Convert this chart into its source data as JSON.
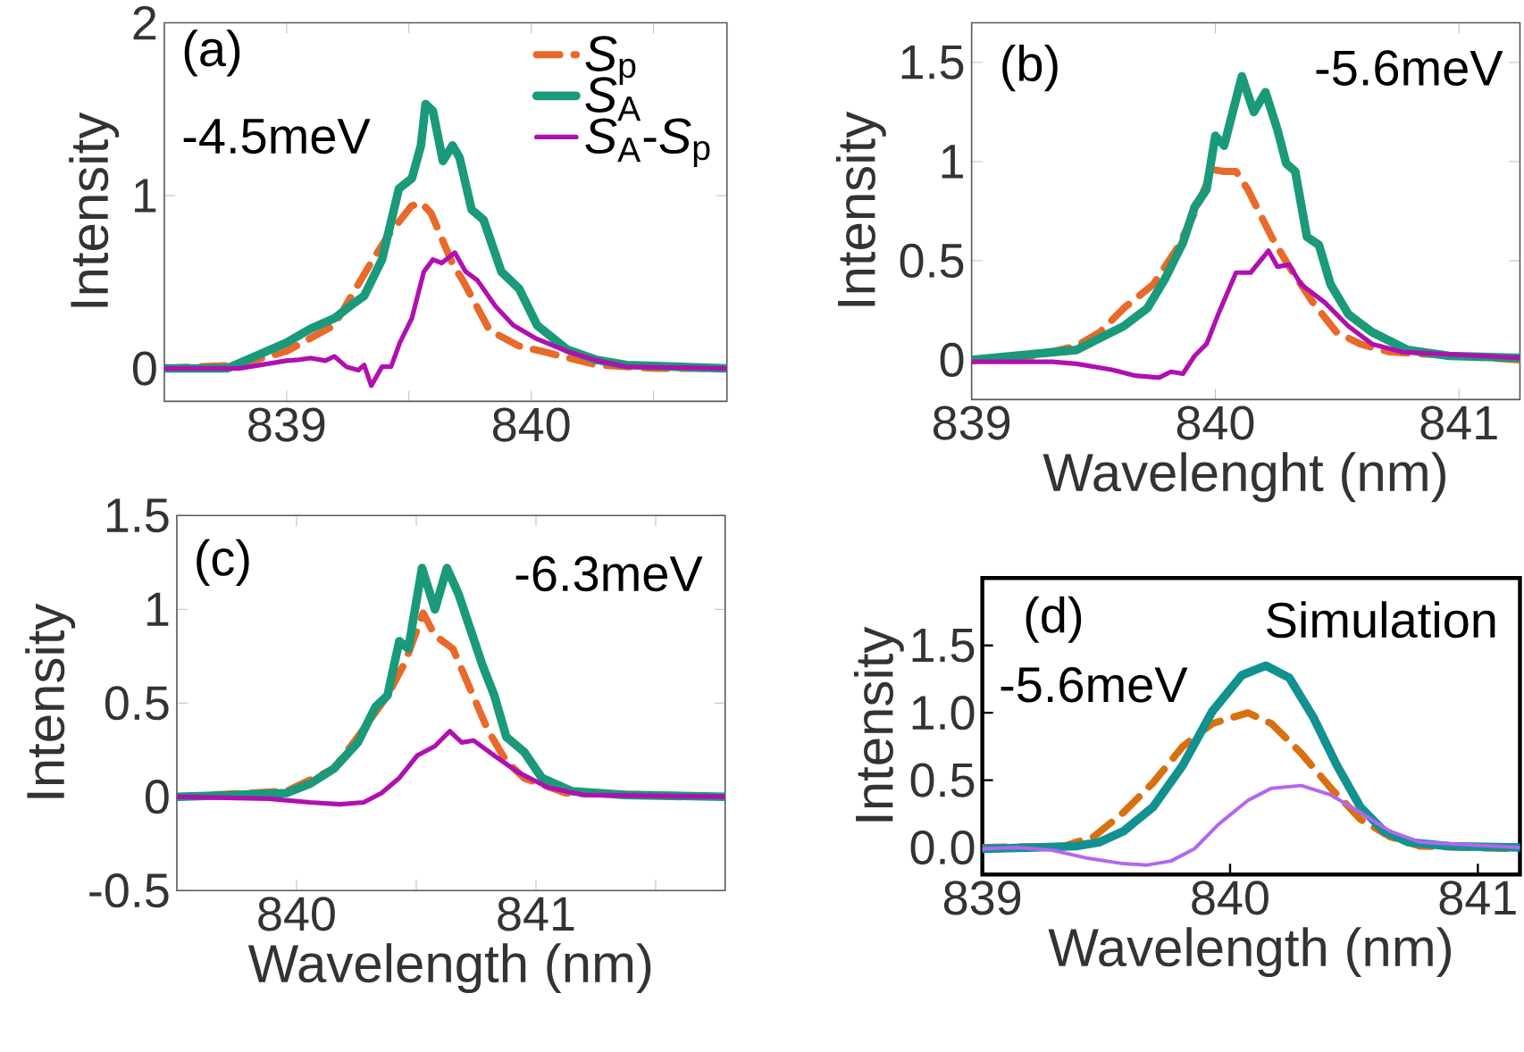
{
  "chart_data": [
    {
      "type": "line",
      "ylabel": "Intensity",
      "xlim": [
        838.5,
        840.8
      ],
      "ylim": [
        -0.19,
        2
      ],
      "xticks": [
        839,
        {
          "value": 839.5,
          "label": null
        },
        840,
        {
          "value": 840.5,
          "label": null
        }
      ],
      "yticks": [
        0,
        1,
        2
      ],
      "legend": "top right",
      "annotations": [
        "(a)",
        "-4.5meV"
      ],
      "series": [
        {
          "name": "*S*$_{p}$",
          "color": "#e8692a",
          "line_style": "dashed",
          "x": [
            838.5,
            838.8,
            839.0,
            839.195,
            839.34,
            839.415,
            839.51,
            839.55,
            839.59,
            839.68,
            839.72,
            839.83,
            839.95,
            840.07,
            840.27,
            840.51,
            840.8
          ],
          "values": [
            0,
            0.02,
            0.1,
            0.25,
            0.6,
            0.77,
            0.94,
            0.96,
            0.9,
            0.6,
            0.51,
            0.22,
            0.13,
            0.09,
            0.02,
            0,
            0
          ]
        },
        {
          "name": "*S*$_{A}$",
          "color": "#1a9a7a",
          "line_style": "solid",
          "x": [
            838.5,
            838.756,
            839.0,
            839.098,
            839.195,
            839.268,
            839.317,
            839.39,
            839.459,
            839.512,
            839.549,
            839.568,
            839.598,
            839.639,
            839.678,
            839.707,
            839.756,
            839.805,
            839.878,
            839.951,
            840.024,
            840.146,
            840.268,
            840.39,
            840.8
          ],
          "values": [
            0,
            0.0,
            0.15,
            0.23,
            0.29,
            0.37,
            0.42,
            0.63,
            1.04,
            1.1,
            1.29,
            1.53,
            1.49,
            1.2,
            1.29,
            1.22,
            0.92,
            0.86,
            0.56,
            0.46,
            0.25,
            0.11,
            0.05,
            0.02,
            0
          ]
        },
        {
          "name": "*S*$_{A}$-*S*$_{p}$",
          "color": "#b010b0",
          "line_style": "solid",
          "x": [
            838.5,
            838.805,
            839.0,
            839.049,
            839.098,
            839.159,
            839.195,
            839.244,
            839.293,
            839.317,
            839.346,
            839.39,
            839.427,
            839.463,
            839.512,
            839.561,
            839.598,
            839.634,
            839.688,
            839.732,
            839.78,
            839.854,
            839.927,
            840.024,
            840.146,
            840.268,
            840.39,
            840.8
          ],
          "values": [
            0,
            0,
            0.045,
            0.05,
            0.06,
            0.045,
            0.07,
            0.01,
            -0.01,
            0.02,
            -0.1,
            0.01,
            0.01,
            0.15,
            0.29,
            0.56,
            0.63,
            0.61,
            0.67,
            0.56,
            0.51,
            0.36,
            0.25,
            0.17,
            0.1,
            0.045,
            0.01,
            0
          ]
        }
      ]
    },
    {
      "type": "line",
      "xlabel": "Wavelenght (nm)",
      "ylabel": "Intensity",
      "xlim": [
        839,
        841.25
      ],
      "ylim": [
        -0.2,
        1.7
      ],
      "xticks": [
        839,
        840,
        841
      ],
      "yticks": [
        0,
        0.5,
        1,
        1.5
      ],
      "annotations": [
        "(b)",
        "-5.6meV"
      ],
      "series": [
        {
          "color": "#e8692a",
          "line_style": "dashed",
          "x": [
            839,
            839.26,
            839.43,
            839.527,
            839.624,
            839.745,
            839.842,
            839.915,
            839.988,
            840.036,
            840.085,
            840.133,
            840.182,
            840.231,
            840.303,
            840.4,
            840.497,
            840.594,
            840.716,
            841.25
          ],
          "values": [
            0,
            0.02,
            0.07,
            0.14,
            0.26,
            0.38,
            0.56,
            0.74,
            0.96,
            0.95,
            0.95,
            0.86,
            0.74,
            0.62,
            0.47,
            0.29,
            0.14,
            0.08,
            0.04,
            0
          ]
        },
        {
          "color": "#1a9a7a",
          "line_style": "solid",
          "x": [
            839,
            839.26,
            839.43,
            839.527,
            839.624,
            839.721,
            839.794,
            839.867,
            839.915,
            839.964,
            840.0,
            840.036,
            840.109,
            840.158,
            840.206,
            840.255,
            840.291,
            840.328,
            840.376,
            840.425,
            840.473,
            840.546,
            840.643,
            840.789,
            840.959,
            841.25
          ],
          "values": [
            0,
            0.03,
            0.05,
            0.11,
            0.17,
            0.26,
            0.41,
            0.59,
            0.77,
            0.86,
            1.13,
            1.08,
            1.43,
            1.25,
            1.35,
            1.16,
            0.99,
            0.95,
            0.62,
            0.58,
            0.38,
            0.23,
            0.14,
            0.05,
            0.02,
            0.01
          ]
        },
        {
          "color": "#b010b0",
          "line_style": "solid",
          "x": [
            839,
            839.332,
            839.43,
            839.575,
            839.672,
            839.769,
            839.818,
            839.867,
            839.915,
            839.964,
            840.012,
            840.085,
            840.145,
            840.218,
            840.255,
            840.303,
            840.352,
            840.449,
            840.546,
            840.643,
            840.765,
            841.25
          ],
          "values": [
            -0.01,
            -0.01,
            -0.02,
            -0.05,
            -0.08,
            -0.09,
            -0.06,
            -0.07,
            0.02,
            0.08,
            0.23,
            0.44,
            0.44,
            0.55,
            0.47,
            0.48,
            0.38,
            0.29,
            0.17,
            0.08,
            0.04,
            0.01
          ]
        }
      ]
    },
    {
      "type": "line",
      "xlabel": "Wavelength (nm)",
      "ylabel": "Intensity",
      "xlim": [
        839.5,
        841.79
      ],
      "ylim": [
        -0.5,
        1.5
      ],
      "xticks": [
        840,
        {
          "value": 840.5,
          "label": null
        },
        841,
        {
          "value": 841.5,
          "label": null
        }
      ],
      "yticks": [
        -0.5,
        0,
        0.5,
        1,
        1.5
      ],
      "annotations": [
        "(c)",
        "-6.3meV"
      ],
      "series": [
        {
          "color": "#e8692a",
          "line_style": "dashed",
          "x": [
            839.5,
            839.958,
            840.156,
            840.256,
            840.38,
            840.454,
            840.529,
            840.578,
            840.653,
            840.727,
            840.801,
            840.876,
            840.95,
            841.124,
            841.79
          ],
          "values": [
            0,
            0.03,
            0.15,
            0.32,
            0.54,
            0.72,
            0.98,
            0.86,
            0.79,
            0.57,
            0.35,
            0.19,
            0.1,
            0.02,
            0
          ]
        },
        {
          "color": "#1a9a7a",
          "line_style": "solid",
          "x": [
            839.5,
            839.759,
            839.958,
            840.057,
            840.156,
            840.256,
            840.33,
            840.38,
            840.429,
            840.467,
            840.524,
            840.578,
            840.628,
            840.677,
            840.727,
            840.777,
            840.826,
            840.876,
            840.95,
            841.025,
            841.149,
            841.372,
            841.79
          ],
          "values": [
            0,
            0.01,
            0.02,
            0.07,
            0.15,
            0.29,
            0.48,
            0.54,
            0.83,
            0.79,
            1.22,
            1.0,
            1.22,
            1.08,
            0.89,
            0.7,
            0.54,
            0.32,
            0.24,
            0.1,
            0.03,
            0.01,
            0
          ]
        },
        {
          "color": "#b010b0",
          "line_style": "solid",
          "x": [
            839.5,
            839.883,
            840.057,
            840.181,
            840.28,
            840.355,
            840.429,
            840.504,
            840.578,
            840.64,
            840.69,
            840.74,
            840.826,
            840.926,
            841.05,
            841.199,
            841.79
          ],
          "values": [
            0,
            -0.01,
            -0.03,
            -0.04,
            -0.03,
            0.02,
            0.1,
            0.22,
            0.27,
            0.35,
            0.29,
            0.3,
            0.22,
            0.13,
            0.05,
            0.01,
            0
          ]
        }
      ]
    },
    {
      "type": "line",
      "xlabel": "Wavelength (nm)",
      "ylabel": "Intensity",
      "xlim": [
        839,
        841.17
      ],
      "ylim": [
        -0.2,
        2.0
      ],
      "xticks": [
        839,
        840,
        841
      ],
      "yticks": [
        {
          "value": 0,
          "label": "0.0"
        },
        {
          "value": 0.5,
          "label": "0.5"
        },
        {
          "value": 1,
          "label": "1.0"
        },
        {
          "value": 1.5,
          "label": "1.5"
        }
      ],
      "annotations": [
        "(d)",
        "Simulation",
        "-5.6meV"
      ],
      "series": [
        {
          "color": "#d9700f",
          "line_style": "dashed",
          "x": [
            839,
            839.33,
            839.45,
            839.569,
            839.689,
            839.809,
            839.928,
            840.072,
            840.167,
            840.287,
            840.407,
            840.526,
            840.646,
            840.766,
            841.17
          ],
          "values": [
            0,
            0.01,
            0.08,
            0.26,
            0.48,
            0.75,
            0.92,
            1.0,
            0.92,
            0.7,
            0.44,
            0.21,
            0.08,
            0.01,
            -0.01
          ]
        },
        {
          "color": "#129191",
          "line_style": "solid",
          "x": [
            839,
            839.211,
            839.378,
            839.474,
            839.569,
            839.689,
            839.809,
            839.928,
            840.048,
            840.144,
            840.239,
            840.335,
            840.431,
            840.526,
            840.622,
            840.718,
            840.885,
            841.17
          ],
          "values": [
            -0.01,
            0,
            0.01,
            0.04,
            0.12,
            0.3,
            0.61,
            1.01,
            1.28,
            1.35,
            1.26,
            0.97,
            0.61,
            0.3,
            0.12,
            0.04,
            0.01,
            0
          ]
        },
        {
          "color": "#b366f0",
          "line_style": "solid",
          "x": [
            839,
            839.139,
            839.282,
            839.426,
            839.569,
            839.665,
            839.761,
            839.856,
            839.952,
            840.072,
            840.167,
            840.287,
            840.407,
            840.526,
            840.646,
            840.766,
            841.17
          ],
          "values": [
            -0.01,
            0,
            -0.02,
            -0.08,
            -0.12,
            -0.13,
            -0.1,
            -0.01,
            0.17,
            0.35,
            0.44,
            0.46,
            0.39,
            0.26,
            0.12,
            0.04,
            0
          ]
        }
      ]
    }
  ]
}
